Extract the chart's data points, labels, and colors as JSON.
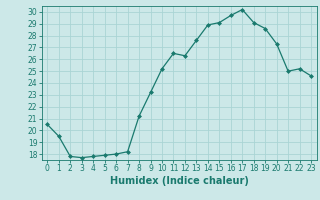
{
  "title": "",
  "xlabel": "Humidex (Indice chaleur)",
  "ylabel": "",
  "x": [
    0,
    1,
    2,
    3,
    4,
    5,
    6,
    7,
    8,
    9,
    10,
    11,
    12,
    13,
    14,
    15,
    16,
    17,
    18,
    19,
    20,
    21,
    22,
    23
  ],
  "y": [
    20.5,
    19.5,
    17.8,
    17.7,
    17.8,
    17.9,
    18.0,
    18.2,
    21.2,
    23.2,
    25.2,
    26.5,
    26.3,
    27.6,
    28.9,
    29.1,
    29.7,
    30.2,
    29.1,
    28.6,
    27.3,
    25.0,
    25.2,
    24.6
  ],
  "line_color": "#1a7a6e",
  "marker": "D",
  "marker_size": 2.0,
  "bg_color": "#cce8e8",
  "grid_color": "#aad4d4",
  "ylim": [
    17.5,
    30.5
  ],
  "xlim": [
    -0.5,
    23.5
  ],
  "yticks": [
    18,
    19,
    20,
    21,
    22,
    23,
    24,
    25,
    26,
    27,
    28,
    29,
    30
  ],
  "xticks": [
    0,
    1,
    2,
    3,
    4,
    5,
    6,
    7,
    8,
    9,
    10,
    11,
    12,
    13,
    14,
    15,
    16,
    17,
    18,
    19,
    20,
    21,
    22,
    23
  ],
  "tick_label_fontsize": 5.5,
  "xlabel_fontsize": 7.0,
  "line_width": 0.9
}
